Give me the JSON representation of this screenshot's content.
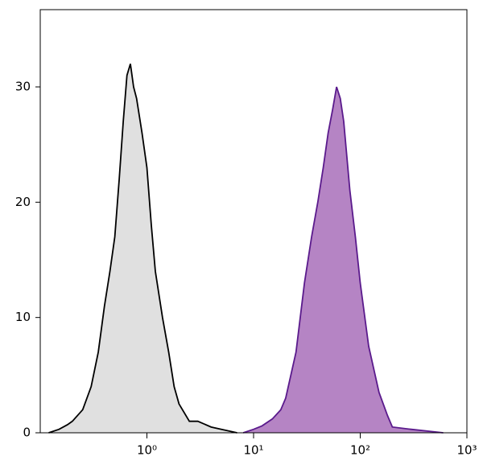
{
  "chart_data": {
    "type": "area",
    "xscale": "log",
    "xlim": [
      0.1,
      1000
    ],
    "ylim": [
      0,
      36.7
    ],
    "xticks": [
      {
        "value": 1,
        "label": "10⁰"
      },
      {
        "value": 10,
        "label": "10¹"
      },
      {
        "value": 100,
        "label": "10²"
      },
      {
        "value": 1000,
        "label": "10³"
      }
    ],
    "yticks": [
      0,
      10,
      20,
      30
    ],
    "series": [
      {
        "color": "#000000",
        "fill": "#e0e0e0",
        "x": [
          0.12,
          0.15,
          0.18,
          0.2,
          0.25,
          0.3,
          0.35,
          0.4,
          0.45,
          0.5,
          0.55,
          0.6,
          0.65,
          0.7,
          0.75,
          0.8,
          0.9,
          1.0,
          1.1,
          1.2,
          1.4,
          1.6,
          1.8,
          2.0,
          2.5,
          3,
          4,
          5,
          7
        ],
        "values": [
          0,
          0.3,
          0.7,
          1,
          2,
          4,
          7,
          11,
          14,
          17,
          22,
          27,
          31,
          32,
          30,
          29,
          26,
          23,
          18,
          14,
          10,
          7,
          4,
          2.5,
          1,
          1,
          0.5,
          0.3,
          0
        ]
      },
      {
        "color": "#5a1a8c",
        "fill": "#b584c4",
        "x": [
          8,
          10,
          12,
          15,
          18,
          20,
          25,
          30,
          35,
          40,
          45,
          50,
          55,
          60,
          65,
          70,
          80,
          90,
          100,
          120,
          150,
          180,
          200,
          300,
          600
        ],
        "values": [
          0,
          0.3,
          0.6,
          1.2,
          2,
          3,
          7,
          13,
          17,
          20,
          23,
          26,
          28,
          30,
          29,
          27,
          21,
          17,
          13,
          7.5,
          3.5,
          1.5,
          0.5,
          0.3,
          0
        ]
      }
    ]
  }
}
